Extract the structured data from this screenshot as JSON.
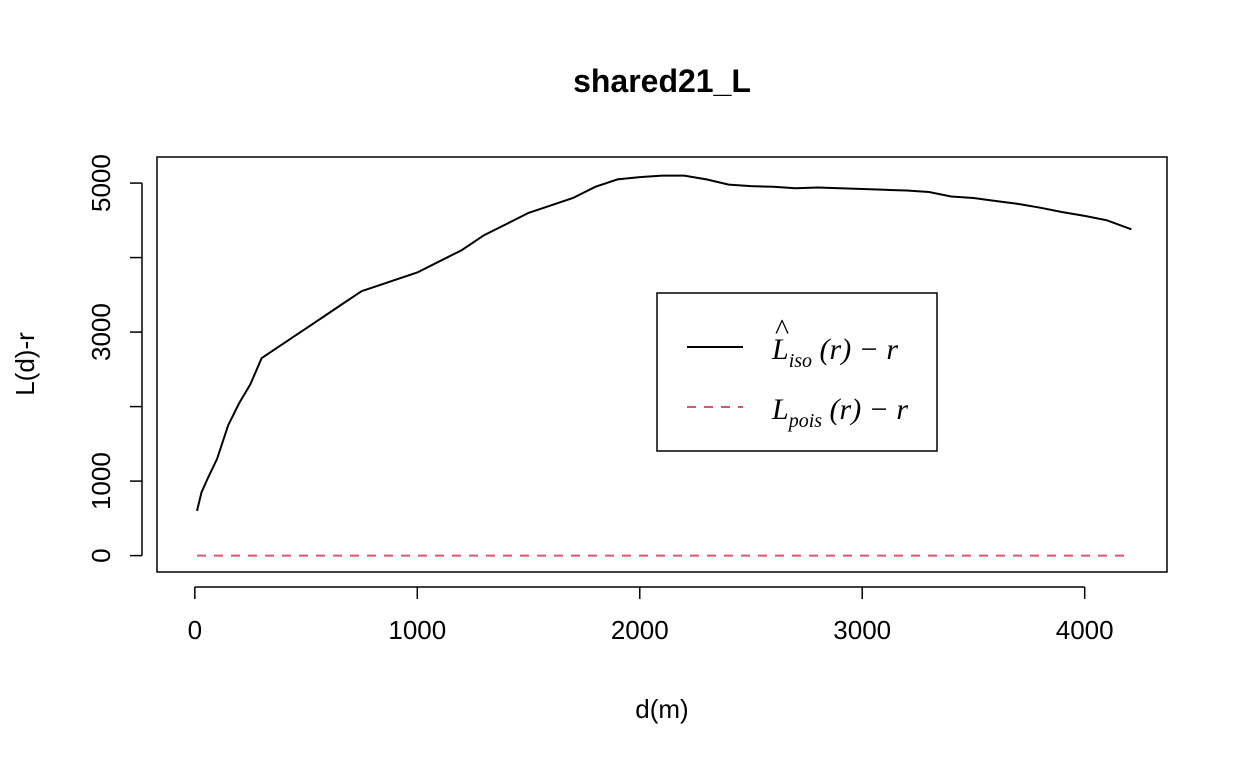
{
  "chart_data": {
    "type": "line",
    "title": "shared21_L",
    "xlabel": "d(m)",
    "ylabel": "L(d)-r",
    "xlim": [
      -170,
      4370
    ],
    "ylim": [
      -220,
      5350
    ],
    "x_ticks": [
      0,
      1000,
      2000,
      3000,
      4000
    ],
    "x_tick_labels": [
      "0",
      "1000",
      "2000",
      "3000",
      "4000"
    ],
    "y_ticks": [
      0,
      1000,
      2000,
      3000,
      4000,
      5000
    ],
    "y_tick_labels": [
      "0",
      "1000",
      "",
      "3000",
      "",
      "5000"
    ],
    "grid": false,
    "legend_position": "center-right",
    "series": [
      {
        "name_parts": {
          "hat": "^",
          "main": "L",
          "sub": "iso",
          "rest": "(r) − r"
        },
        "color": "#000000",
        "dash": "solid",
        "x": [
          10,
          30,
          60,
          100,
          150,
          200,
          250,
          300,
          350,
          400,
          450,
          500,
          550,
          600,
          650,
          700,
          750,
          800,
          850,
          900,
          1000,
          1100,
          1200,
          1300,
          1400,
          1500,
          1600,
          1700,
          1800,
          1900,
          2000,
          2100,
          2200,
          2300,
          2400,
          2500,
          2600,
          2700,
          2800,
          2900,
          3000,
          3100,
          3200,
          3300,
          3400,
          3500,
          3600,
          3700,
          3800,
          3900,
          4000,
          4100,
          4210
        ],
        "y": [
          600,
          850,
          1050,
          1300,
          1750,
          2050,
          2300,
          2650,
          2750,
          2850,
          2950,
          3050,
          3150,
          3250,
          3350,
          3450,
          3550,
          3600,
          3650,
          3700,
          3800,
          3950,
          4100,
          4300,
          4450,
          4600,
          4700,
          4800,
          4950,
          5050,
          5080,
          5100,
          5100,
          5050,
          4980,
          4960,
          4950,
          4930,
          4940,
          4930,
          4920,
          4910,
          4900,
          4880,
          4820,
          4800,
          4760,
          4720,
          4670,
          4610,
          4560,
          4500,
          4380
        ]
      },
      {
        "name_parts": {
          "hat": "",
          "main": "L",
          "sub": "pois",
          "rest": "(r) − r"
        },
        "color": "#DF536B",
        "dash": "dashed",
        "x": [
          10,
          4210
        ],
        "y": [
          0,
          0
        ]
      }
    ]
  }
}
